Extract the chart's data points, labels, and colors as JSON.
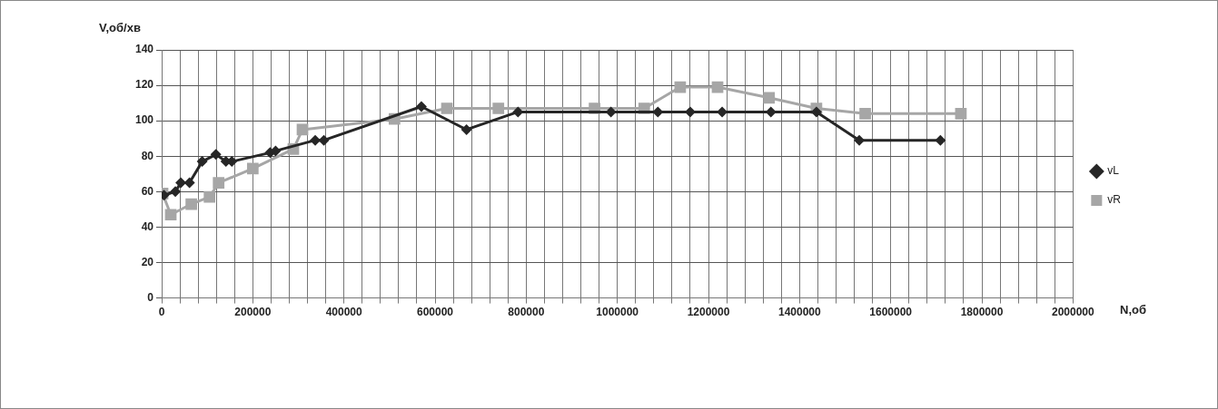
{
  "chart_data": {
    "type": "line",
    "xlabel": "N,об",
    "ylabel": "V,об/хв",
    "series": [
      {
        "name": "vL",
        "color": "#262626",
        "marker": "diamond",
        "x": [
          5000,
          30000,
          42000,
          61000,
          89000,
          119000,
          141000,
          154000,
          238000,
          250000,
          337000,
          356000,
          570000,
          669000,
          782000,
          986000,
          1089000,
          1160000,
          1230000,
          1337000,
          1437000,
          1531000,
          1709000
        ],
        "values": [
          58,
          60,
          65,
          65,
          77,
          81,
          77,
          77,
          82,
          83,
          89,
          89,
          108,
          95,
          105,
          105,
          105,
          105,
          105,
          105,
          105,
          89,
          89
        ]
      },
      {
        "name": "vR",
        "color": "#a6a6a6",
        "marker": "square",
        "x": [
          2000,
          20000,
          65000,
          105000,
          125000,
          200000,
          289000,
          309000,
          511000,
          626000,
          739000,
          950000,
          1059000,
          1138000,
          1220000,
          1333000,
          1437000,
          1544000,
          1754000
        ],
        "values": [
          59,
          47,
          53,
          57,
          65,
          73,
          84,
          95,
          101,
          107,
          107,
          107,
          107,
          119,
          119,
          113,
          107,
          104,
          104
        ]
      }
    ],
    "xlim": [
      0,
      2000000
    ],
    "xticks": [
      0,
      {
        "value": 40000,
        "label": null
      },
      {
        "value": 80000,
        "label": null
      },
      {
        "value": 120000,
        "label": null
      },
      {
        "value": 160000,
        "label": null
      },
      200000,
      {
        "value": 240000,
        "label": null
      },
      {
        "value": 280000,
        "label": null
      },
      {
        "value": 320000,
        "label": null
      },
      {
        "value": 360000,
        "label": null
      },
      400000,
      {
        "value": 440000,
        "label": null
      },
      {
        "value": 480000,
        "label": null
      },
      {
        "value": 520000,
        "label": null
      },
      {
        "value": 560000,
        "label": null
      },
      600000,
      {
        "value": 640000,
        "label": null
      },
      {
        "value": 680000,
        "label": null
      },
      {
        "value": 720000,
        "label": null
      },
      {
        "value": 760000,
        "label": null
      },
      800000,
      {
        "value": 840000,
        "label": null
      },
      {
        "value": 880000,
        "label": null
      },
      {
        "value": 920000,
        "label": null
      },
      {
        "value": 960000,
        "label": null
      },
      1000000,
      {
        "value": 1040000,
        "label": null
      },
      {
        "value": 1080000,
        "label": null
      },
      {
        "value": 1120000,
        "label": null
      },
      {
        "value": 1160000,
        "label": null
      },
      1200000,
      {
        "value": 1240000,
        "label": null
      },
      {
        "value": 1280000,
        "label": null
      },
      {
        "value": 1320000,
        "label": null
      },
      {
        "value": 1360000,
        "label": null
      },
      1400000,
      {
        "value": 1440000,
        "label": null
      },
      {
        "value": 1480000,
        "label": null
      },
      {
        "value": 1520000,
        "label": null
      },
      {
        "value": 1560000,
        "label": null
      },
      1600000,
      {
        "value": 1640000,
        "label": null
      },
      {
        "value": 1680000,
        "label": null
      },
      {
        "value": 1720000,
        "label": null
      },
      {
        "value": 1760000,
        "label": null
      },
      1800000,
      {
        "value": 1840000,
        "label": null
      },
      {
        "value": 1880000,
        "label": null
      },
      {
        "value": 1920000,
        "label": null
      },
      {
        "value": 1960000,
        "label": null
      },
      2000000
    ],
    "ylim": [
      0,
      140
    ],
    "yticks": [
      0,
      20,
      40,
      60,
      80,
      100,
      120,
      140
    ],
    "grid": true,
    "legend": "right",
    "line_style": "solid"
  }
}
